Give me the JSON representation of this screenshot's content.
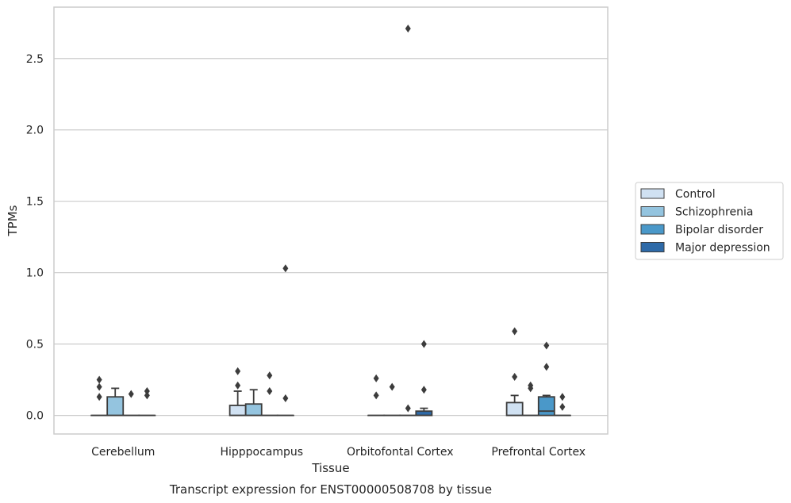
{
  "chart_data": {
    "type": "box",
    "title": "",
    "caption": "Transcript expression for ENST00000508708 by tissue",
    "xlabel": "Tissue",
    "ylabel": "TPMs",
    "ylim": [
      -0.13,
      2.86
    ],
    "yticks": [
      "0.0",
      "0.5",
      "1.0",
      "1.5",
      "2.0",
      "2.5"
    ],
    "grid": "horizontal",
    "legend_position": "right",
    "categories": [
      "Cerebellum",
      "Hipppocampus",
      "Orbitofontal Cortex",
      "Prefrontal Cortex"
    ],
    "series": [
      {
        "name": "Control",
        "color": "#d0e1f2",
        "boxes": [
          {
            "q1": 0,
            "median": 0,
            "q3": 0,
            "whisker_low": 0,
            "whisker_high": 0,
            "outliers": [
              0.13,
              0.2,
              0.25
            ]
          },
          {
            "q1": 0,
            "median": 0,
            "q3": 0.07,
            "whisker_low": 0,
            "whisker_high": 0.17,
            "outliers": [
              0.21,
              0.31
            ]
          },
          {
            "q1": 0,
            "median": 0,
            "q3": 0,
            "whisker_low": 0,
            "whisker_high": 0,
            "outliers": [
              0.14,
              0.26
            ]
          },
          {
            "q1": 0,
            "median": 0,
            "q3": 0.09,
            "whisker_low": 0,
            "whisker_high": 0.14,
            "outliers": [
              0.27,
              0.59
            ]
          }
        ]
      },
      {
        "name": "Schizophrenia",
        "color": "#94c4df",
        "boxes": [
          {
            "q1": 0,
            "median": 0,
            "q3": 0.13,
            "whisker_low": 0,
            "whisker_high": 0.19,
            "outliers": []
          },
          {
            "q1": 0,
            "median": 0,
            "q3": 0.08,
            "whisker_low": 0,
            "whisker_high": 0.18,
            "outliers": []
          },
          {
            "q1": 0,
            "median": 0,
            "q3": 0,
            "whisker_low": 0,
            "whisker_high": 0,
            "outliers": [
              0.2
            ]
          },
          {
            "q1": 0,
            "median": 0,
            "q3": 0,
            "whisker_low": 0,
            "whisker_high": 0,
            "outliers": [
              0.19,
              0.21
            ]
          }
        ]
      },
      {
        "name": "Bipolar disorder",
        "color": "#4a98c9",
        "boxes": [
          {
            "q1": 0,
            "median": 0,
            "q3": 0,
            "whisker_low": 0,
            "whisker_high": 0,
            "outliers": [
              0.15
            ]
          },
          {
            "q1": 0,
            "median": 0,
            "q3": 0,
            "whisker_low": 0,
            "whisker_high": 0,
            "outliers": [
              0.17,
              0.28
            ]
          },
          {
            "q1": 0,
            "median": 0,
            "q3": 0,
            "whisker_low": 0,
            "whisker_high": 0,
            "outliers": [
              0.05,
              2.71
            ]
          },
          {
            "q1": 0,
            "median": 0.03,
            "q3": 0.13,
            "whisker_low": 0,
            "whisker_high": 0.14,
            "outliers": [
              0.34,
              0.49
            ]
          }
        ]
      },
      {
        "name": "Major depression",
        "color": "#2e6aa8",
        "boxes": [
          {
            "q1": 0,
            "median": 0,
            "q3": 0,
            "whisker_low": 0,
            "whisker_high": 0,
            "outliers": [
              0.14,
              0.17
            ]
          },
          {
            "q1": 0,
            "median": 0,
            "q3": 0,
            "whisker_low": 0,
            "whisker_high": 0,
            "outliers": [
              0.12,
              1.03
            ]
          },
          {
            "q1": 0,
            "median": 0,
            "q3": 0.03,
            "whisker_low": 0,
            "whisker_high": 0.05,
            "outliers": [
              0.18,
              0.5
            ]
          },
          {
            "q1": 0,
            "median": 0,
            "q3": 0,
            "whisker_low": 0,
            "whisker_high": 0,
            "outliers": [
              0.06,
              0.13
            ]
          }
        ]
      }
    ]
  }
}
